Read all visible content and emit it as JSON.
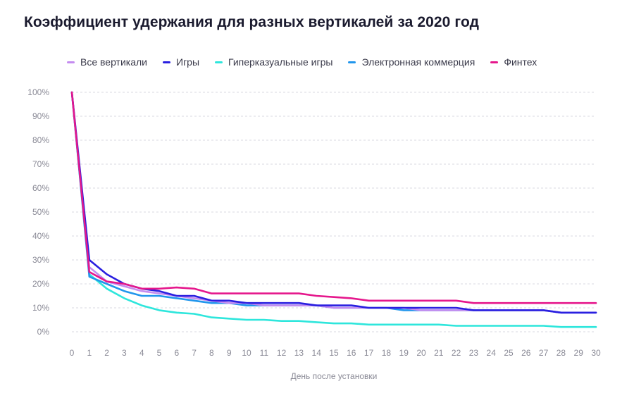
{
  "colors": {
    "grid": "#d9d9e0"
  },
  "chart_data": {
    "type": "line",
    "title": "Коэффициент удержания для разных вертикалей за 2020 год",
    "xlabel": "День после установки",
    "ylabel": "",
    "x": [
      0,
      1,
      2,
      3,
      4,
      5,
      6,
      7,
      8,
      9,
      10,
      11,
      12,
      13,
      14,
      15,
      16,
      17,
      18,
      19,
      20,
      21,
      22,
      23,
      24,
      25,
      26,
      27,
      28,
      29,
      30
    ],
    "xticks": [
      "0",
      "1",
      "2",
      "3",
      "4",
      "5",
      "6",
      "7",
      "8",
      "9",
      "10",
      "11",
      "12",
      "13",
      "14",
      "15",
      "16",
      "17",
      "18",
      "19",
      "20",
      "21",
      "22",
      "23",
      "24",
      "25",
      "26",
      "27",
      "28",
      "29",
      "30"
    ],
    "ylim": [
      0,
      100
    ],
    "yticks": [
      0,
      10,
      20,
      30,
      40,
      50,
      60,
      70,
      80,
      90,
      100
    ],
    "ytick_labels": [
      "0%",
      "10%",
      "20%",
      "30%",
      "40%",
      "50%",
      "60%",
      "70%",
      "80%",
      "90%",
      "100%"
    ],
    "grid": true,
    "legend_position": "top",
    "series": [
      {
        "name": "Все вертикали",
        "color": "#c58cf0",
        "values": [
          100,
          27,
          21,
          19,
          17,
          16,
          15,
          14,
          13,
          12,
          12,
          11,
          11,
          11,
          11,
          10,
          10,
          10,
          10,
          10,
          9,
          9,
          9,
          9,
          9,
          9,
          9,
          9,
          8,
          8,
          8
        ]
      },
      {
        "name": "Игры",
        "color": "#2a1fe0",
        "values": [
          100,
          30,
          24,
          20,
          18,
          17,
          15,
          15,
          13,
          13,
          12,
          12,
          12,
          12,
          11,
          11,
          11,
          10,
          10,
          10,
          10,
          10,
          10,
          9,
          9,
          9,
          9,
          9,
          8,
          8,
          8
        ]
      },
      {
        "name": "Гиперказуальные игры",
        "color": "#2ee6dc",
        "values": [
          100,
          24,
          18,
          14,
          11,
          9,
          8,
          7.5,
          6,
          5.5,
          5,
          5,
          4.5,
          4.5,
          4,
          3.5,
          3.5,
          3,
          3,
          3,
          3,
          3,
          2.5,
          2.5,
          2.5,
          2.5,
          2.5,
          2.5,
          2,
          2,
          2
        ]
      },
      {
        "name": "Электронная коммерция",
        "color": "#2196ec",
        "values": [
          100,
          23,
          20,
          17,
          15,
          15,
          14,
          13,
          12,
          12,
          11,
          11,
          11,
          11,
          11,
          10,
          10,
          10,
          10,
          9,
          9,
          9,
          9,
          9,
          9,
          9,
          9,
          9,
          8,
          8,
          8
        ]
      },
      {
        "name": "Финтех",
        "color": "#e5178c",
        "values": [
          100,
          25,
          21,
          20,
          18,
          18,
          18.5,
          18,
          16,
          16,
          16,
          16,
          16,
          16,
          15,
          14.5,
          14,
          13,
          13,
          13,
          13,
          13,
          13,
          12,
          12,
          12,
          12,
          12,
          12,
          12,
          12
        ]
      }
    ]
  }
}
